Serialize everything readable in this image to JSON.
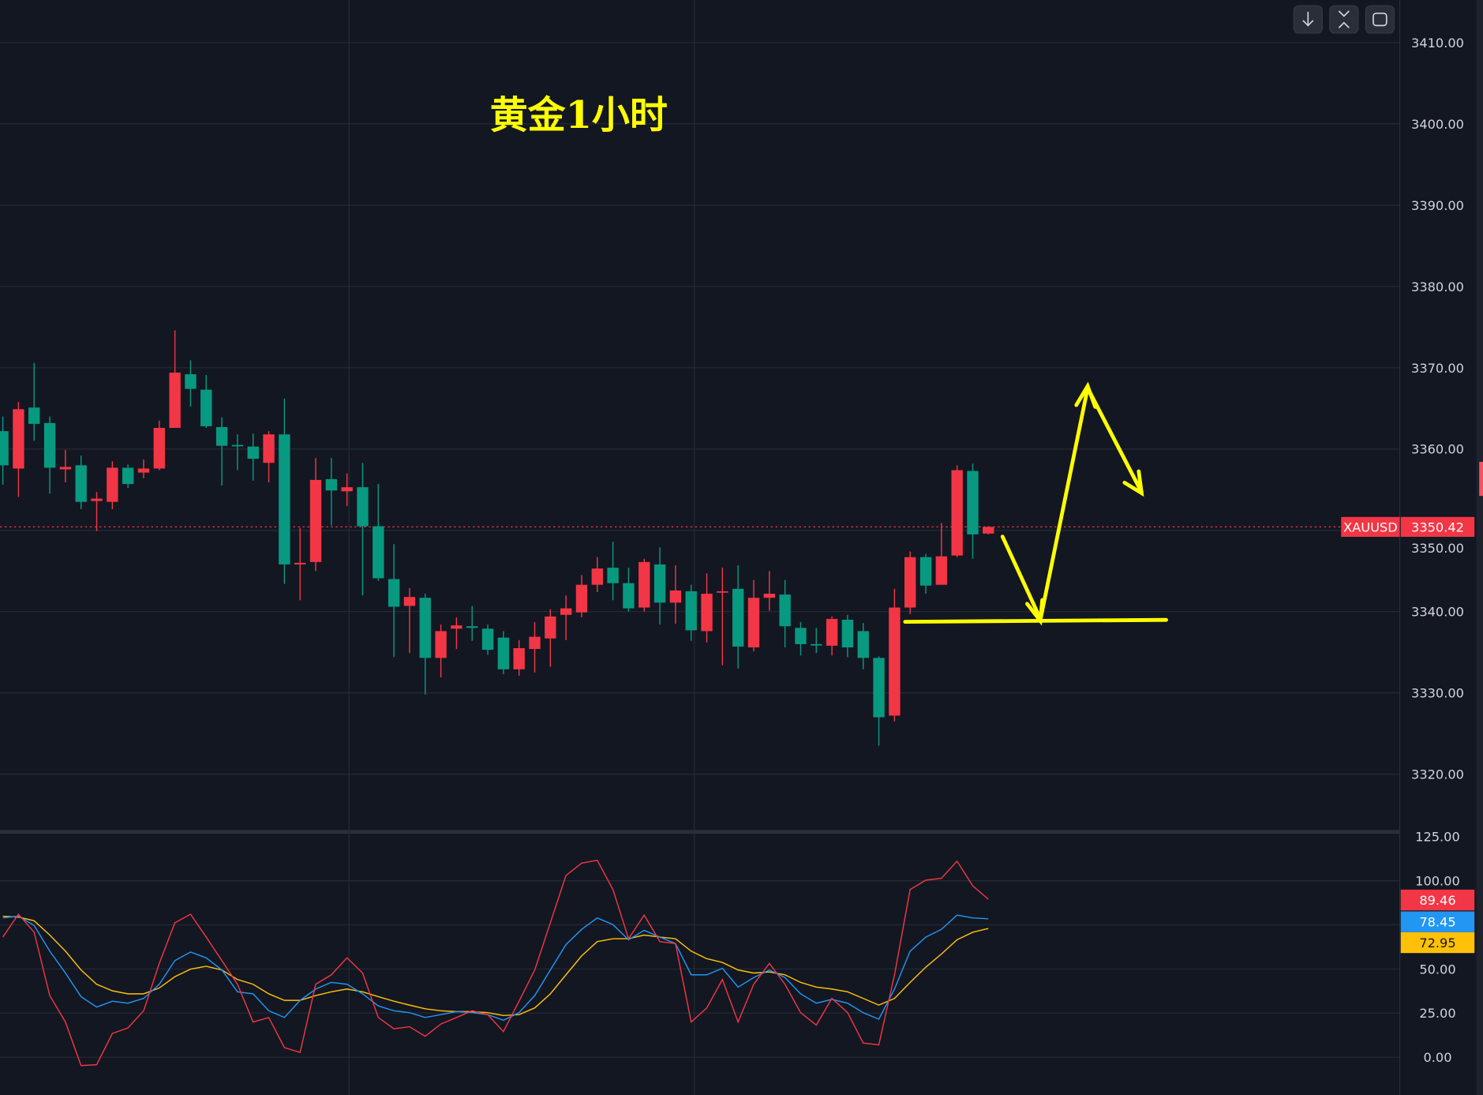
{
  "chart_data": [
    {
      "type": "candlestick",
      "title": "黄金1小时",
      "symbol": "XAUUSD",
      "last_price": "3350.42",
      "ylim": [
        3315,
        3415
      ],
      "y_ticks": [
        "3410.00",
        "3400.00",
        "3390.00",
        "3380.00",
        "3370.00",
        "3360.00",
        "3350.00",
        "3340.00",
        "3330.00",
        "3320.00"
      ],
      "grid": true,
      "colors": {
        "up": "#f23645",
        "down": "#089981",
        "background": "#131722",
        "annotation": "#ffff00"
      },
      "ohlc": [
        [
          3362.2,
          3364.0,
          3355.6,
          3358.0
        ],
        [
          3357.6,
          3365.8,
          3354.1,
          3364.9
        ],
        [
          3365.1,
          3370.6,
          3361.0,
          3363.1
        ],
        [
          3363.2,
          3364.0,
          3354.5,
          3357.7
        ],
        [
          3357.5,
          3359.9,
          3355.9,
          3357.8
        ],
        [
          3358.0,
          3359.2,
          3352.6,
          3353.5
        ],
        [
          3353.6,
          3354.7,
          3349.9,
          3353.9
        ],
        [
          3353.5,
          3358.5,
          3352.6,
          3357.7
        ],
        [
          3357.7,
          3358.1,
          3355.2,
          3355.7
        ],
        [
          3357.1,
          3358.7,
          3356.4,
          3357.6
        ],
        [
          3357.6,
          3363.5,
          3357.4,
          3362.6
        ],
        [
          3362.6,
          3374.6,
          3362.6,
          3369.4
        ],
        [
          3369.2,
          3370.9,
          3365.2,
          3367.4
        ],
        [
          3367.3,
          3369.1,
          3362.6,
          3362.8
        ],
        [
          3362.7,
          3363.9,
          3355.5,
          3360.4
        ],
        [
          3360.5,
          3361.8,
          3357.4,
          3360.4
        ],
        [
          3360.3,
          3361.9,
          3356.1,
          3358.8
        ],
        [
          3358.3,
          3362.2,
          3355.9,
          3361.8
        ],
        [
          3361.8,
          3366.2,
          3343.4,
          3345.8
        ],
        [
          3345.8,
          3350.3,
          3341.4,
          3346.0
        ],
        [
          3346.1,
          3358.9,
          3345.0,
          3356.2
        ],
        [
          3356.3,
          3358.9,
          3350.6,
          3354.9
        ],
        [
          3354.8,
          3357.0,
          3353.0,
          3355.3
        ],
        [
          3355.3,
          3358.3,
          3342.0,
          3350.5
        ],
        [
          3350.5,
          3355.7,
          3343.8,
          3344.1
        ],
        [
          3344.0,
          3348.3,
          3334.4,
          3340.6
        ],
        [
          3340.7,
          3342.9,
          3334.9,
          3341.8
        ],
        [
          3341.7,
          3342.2,
          3329.8,
          3334.3
        ],
        [
          3334.3,
          3338.4,
          3331.9,
          3337.6
        ],
        [
          3337.9,
          3339.3,
          3335.4,
          3338.3
        ],
        [
          3338.2,
          3340.7,
          3336.4,
          3338.0
        ],
        [
          3337.9,
          3338.4,
          3334.7,
          3335.3
        ],
        [
          3336.8,
          3337.6,
          3332.3,
          3332.9
        ],
        [
          3332.9,
          3336.5,
          3332.1,
          3335.5
        ],
        [
          3335.4,
          3338.7,
          3332.5,
          3336.9
        ],
        [
          3336.7,
          3340.3,
          3333.2,
          3339.4
        ],
        [
          3339.6,
          3342.0,
          3336.5,
          3340.4
        ],
        [
          3339.9,
          3344.5,
          3339.3,
          3343.3
        ],
        [
          3343.3,
          3346.7,
          3342.4,
          3345.3
        ],
        [
          3345.4,
          3348.6,
          3341.4,
          3343.5
        ],
        [
          3343.5,
          3345.4,
          3340.0,
          3340.4
        ],
        [
          3340.5,
          3346.5,
          3340.0,
          3346.1
        ],
        [
          3345.8,
          3347.9,
          3338.4,
          3341.1
        ],
        [
          3341.1,
          3345.7,
          3338.5,
          3342.6
        ],
        [
          3342.5,
          3343.3,
          3336.4,
          3337.7
        ],
        [
          3337.6,
          3344.7,
          3336.2,
          3342.2
        ],
        [
          3342.4,
          3345.4,
          3333.4,
          3342.5
        ],
        [
          3342.8,
          3345.7,
          3333.0,
          3335.7
        ],
        [
          3335.6,
          3343.9,
          3335.1,
          3341.7
        ],
        [
          3341.7,
          3345.0,
          3340.1,
          3342.2
        ],
        [
          3342.1,
          3343.9,
          3335.6,
          3338.2
        ],
        [
          3338.0,
          3338.7,
          3334.6,
          3336.0
        ],
        [
          3336.0,
          3338.0,
          3334.9,
          3335.9
        ],
        [
          3335.8,
          3339.4,
          3334.6,
          3339.1
        ],
        [
          3339.0,
          3339.6,
          3334.4,
          3335.6
        ],
        [
          3337.6,
          3338.6,
          3332.9,
          3334.3
        ],
        [
          3334.3,
          3334.5,
          3323.5,
          3327.0
        ],
        [
          3327.2,
          3342.8,
          3326.5,
          3340.5
        ],
        [
          3340.5,
          3347.4,
          3339.7,
          3346.7
        ],
        [
          3346.7,
          3347.1,
          3342.2,
          3343.2
        ],
        [
          3343.3,
          3350.9,
          3343.3,
          3346.8
        ],
        [
          3346.9,
          3358.0,
          3346.7,
          3357.4
        ],
        [
          3357.3,
          3358.2,
          3346.5,
          3349.5
        ],
        [
          3349.6,
          3350.5,
          3349.5,
          3350.42
        ]
      ]
    },
    {
      "type": "line",
      "ylim": [
        -10,
        130
      ],
      "y_ticks": [
        "125.00",
        "100.00",
        "50.00",
        "25.00",
        "0.00"
      ],
      "grid": true,
      "series": [
        {
          "color": "#f23645",
          "last_label": "89.46",
          "values": [
            68.1,
            81.0,
            70.8,
            34.9,
            19.9,
            -4.8,
            -4.3,
            13.4,
            16.6,
            26.3,
            53.1,
            76.2,
            81.0,
            68.1,
            54.7,
            41.3,
            19.9,
            22.5,
            5.4,
            2.7,
            41.3,
            46.7,
            56.3,
            47.7,
            22.5,
            16.1,
            17.2,
            11.8,
            18.8,
            22.5,
            26.3,
            24.1,
            14.5,
            31.7,
            49.4,
            76.2,
            103.0,
            110.0,
            111.6,
            95.0,
            67.1,
            80.5,
            65.5,
            64.4,
            19.9,
            27.9,
            44.0,
            19.9,
            41.3,
            53.1,
            41.3,
            25.2,
            18.2,
            33.3,
            25.2,
            8.0,
            7.0,
            46.7,
            95.0,
            100.3,
            101.4,
            111.1,
            97.1,
            89.46
          ]
        },
        {
          "color": "#2196f3",
          "last_label": "78.45",
          "values": [
            78.9,
            79.9,
            74.6,
            60.1,
            47.7,
            34.3,
            28.4,
            31.7,
            30.6,
            33.3,
            41.3,
            54.7,
            59.6,
            56.3,
            49.4,
            37.0,
            35.9,
            26.3,
            22.5,
            32.2,
            38.6,
            42.4,
            41.3,
            35.9,
            29.0,
            26.3,
            25.2,
            22.5,
            24.1,
            25.8,
            25.2,
            24.1,
            20.9,
            25.2,
            34.9,
            49.4,
            63.8,
            72.4,
            78.9,
            75.1,
            66.5,
            71.9,
            68.1,
            64.4,
            46.7,
            46.7,
            50.4,
            39.7,
            45.1,
            49.4,
            45.1,
            35.9,
            30.6,
            32.7,
            30.6,
            25.2,
            21.5,
            38.6,
            60.1,
            68.1,
            72.4,
            80.5,
            78.9,
            78.45
          ]
        },
        {
          "color": "#ffc107",
          "last_label": "72.95",
          "values": [
            79.9,
            79.4,
            77.3,
            69.2,
            60.1,
            49.4,
            41.3,
            37.6,
            35.9,
            35.9,
            39.2,
            45.6,
            49.9,
            51.5,
            49.4,
            44.0,
            41.3,
            35.9,
            32.2,
            32.2,
            34.9,
            37.0,
            38.6,
            37.0,
            34.3,
            31.7,
            29.5,
            27.4,
            26.3,
            25.8,
            25.8,
            25.2,
            23.6,
            24.1,
            27.9,
            35.9,
            46.7,
            57.4,
            65.5,
            67.1,
            67.1,
            69.2,
            68.1,
            67.1,
            60.1,
            55.8,
            53.7,
            49.4,
            47.7,
            48.3,
            46.7,
            42.4,
            39.7,
            38.6,
            37.0,
            33.3,
            29.5,
            33.3,
            42.4,
            51.0,
            58.5,
            66.5,
            70.8,
            72.95
          ]
        }
      ]
    }
  ],
  "toolbar": {
    "buttons": [
      {
        "icon": "arrow-down-icon"
      },
      {
        "icon": "collapse-icon"
      },
      {
        "icon": "fullscreen-icon"
      }
    ]
  }
}
